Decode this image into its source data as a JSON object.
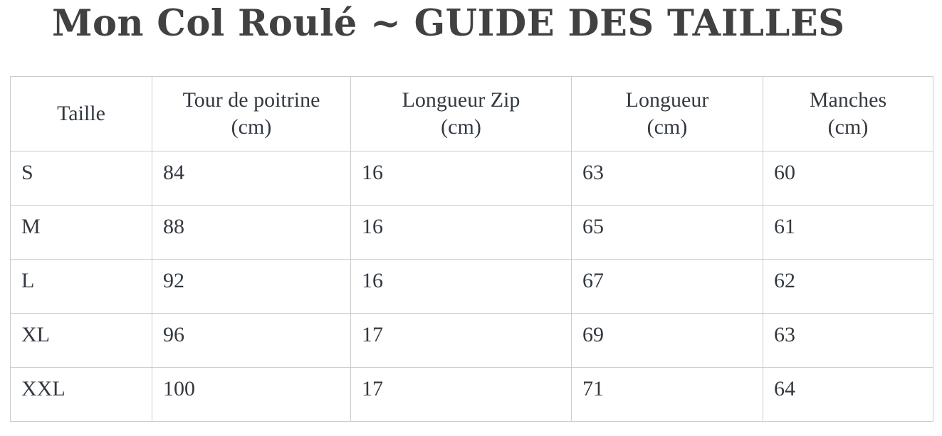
{
  "page": {
    "title": "Mon Col Roulé ~ GUIDE DES TAILLES"
  },
  "colors": {
    "title_text": "#414141",
    "table_text": "#323941",
    "table_border": "#cccccc",
    "background": "#ffffff"
  },
  "table": {
    "columns": [
      {
        "label": "Taille",
        "unit": ""
      },
      {
        "label": "Tour de poitrine",
        "unit": "(cm)"
      },
      {
        "label": "Longueur Zip",
        "unit": "(cm)"
      },
      {
        "label": "Longueur",
        "unit": "(cm)"
      },
      {
        "label": "Manches",
        "unit": "(cm)"
      }
    ],
    "rows": [
      {
        "size": "S",
        "values": [
          "84",
          "16",
          "63",
          "60"
        ]
      },
      {
        "size": "M",
        "values": [
          "88",
          "16",
          "65",
          "61"
        ]
      },
      {
        "size": "L",
        "values": [
          "92",
          "16",
          "67",
          "62"
        ]
      },
      {
        "size": "XL",
        "values": [
          "96",
          "17",
          "69",
          "63"
        ]
      },
      {
        "size": "XXL",
        "values": [
          "100",
          "17",
          "71",
          "64"
        ]
      }
    ]
  }
}
